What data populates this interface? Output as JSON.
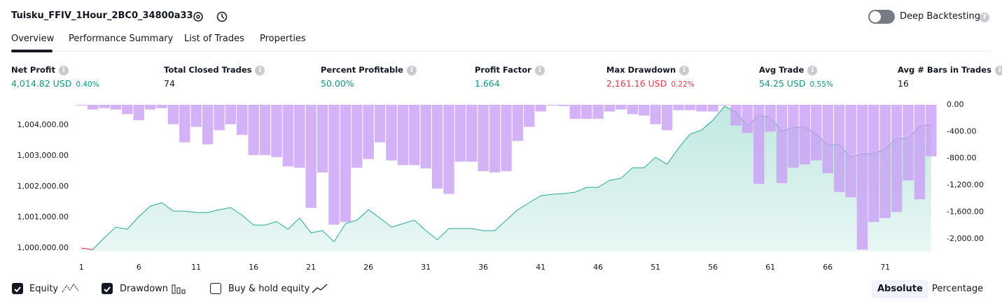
{
  "header": {
    "title": "Tuisku_FFIV_1Hour_2BC0_34800a33",
    "toggle": {
      "label": "Deep Backtesting",
      "enabled": false
    }
  },
  "tabs": [
    {
      "label": "Overview",
      "selected": true
    },
    {
      "label": "Performance Summary",
      "selected": false
    },
    {
      "label": "List of Trades",
      "selected": false
    },
    {
      "label": "Properties",
      "selected": false
    }
  ],
  "stats": [
    {
      "label": "Net Profit",
      "value": "4,014.82 USD",
      "percent": "0.40%",
      "color": "#089981"
    },
    {
      "label": "Total Closed Trades",
      "value": "74",
      "color": "#131722"
    },
    {
      "label": "Percent Profitable",
      "value": "50.00%",
      "color": "#089981"
    },
    {
      "label": "Profit Factor",
      "value": "1.664",
      "color": "#089981"
    },
    {
      "label": "Max Drawdown",
      "value": "2,161.16 USD",
      "percent": "0.22%",
      "color": "#f23645"
    },
    {
      "label": "Avg Trade",
      "value": "54.25 USD",
      "percent": "0.55%",
      "color": "#089981"
    },
    {
      "label": "Avg # Bars in Trades",
      "value": "16",
      "color": "#131722"
    }
  ],
  "chart_data": {
    "type": "combo",
    "x": [
      1,
      2,
      3,
      4,
      5,
      6,
      7,
      8,
      9,
      10,
      11,
      12,
      13,
      14,
      15,
      16,
      17,
      18,
      19,
      20,
      21,
      22,
      23,
      24,
      25,
      26,
      27,
      28,
      29,
      30,
      31,
      32,
      33,
      34,
      35,
      36,
      37,
      38,
      39,
      40,
      41,
      42,
      43,
      44,
      45,
      46,
      47,
      48,
      49,
      50,
      51,
      52,
      53,
      54,
      55,
      56,
      57,
      58,
      59,
      60,
      61,
      62,
      63,
      64,
      65,
      66,
      67,
      68,
      69,
      70,
      71,
      72,
      73,
      74,
      75
    ],
    "xlim": [
      0.5,
      75.5
    ],
    "xticks": [
      1,
      6,
      11,
      16,
      21,
      26,
      31,
      36,
      41,
      46,
      51,
      56,
      61,
      66,
      71
    ],
    "ylim": [
      999890,
      1004660
    ],
    "yticks": [
      {
        "value": 1000000,
        "label": "1,000,000.00"
      },
      {
        "value": 1001000,
        "label": "1,001,000.00"
      },
      {
        "value": 1002000,
        "label": "1,002,000.00"
      },
      {
        "value": 1003000,
        "label": "1,003,000.00"
      },
      {
        "value": 1004000,
        "label": "1,004,000.00"
      }
    ],
    "y2lim": [
      -2190,
      0
    ],
    "y2ticks": [
      {
        "value": 0,
        "label": "0.00"
      },
      {
        "value": -400,
        "label": "-400.00"
      },
      {
        "value": -800,
        "label": "-800.00"
      },
      {
        "value": -1200,
        "label": "-1,200.00"
      },
      {
        "value": -1600,
        "label": "-1,600.00"
      },
      {
        "value": -2000,
        "label": "-2,000.00"
      }
    ],
    "series": [
      {
        "name": "Equity",
        "type": "area",
        "color": "#22ab94",
        "below_color": "#f23645",
        "visible": true,
        "values": [
          1000000,
          999955,
          1000341,
          1000682,
          1000614,
          1001023,
          1001364,
          1001477,
          1001205,
          1001205,
          1001159,
          1001159,
          1001250,
          1001318,
          1001068,
          1000750,
          1000750,
          1000864,
          1000614,
          1000977,
          1000500,
          1000568,
          1000205,
          1000795,
          1000909,
          1001250,
          1000977,
          1000682,
          1000795,
          1000909,
          1000568,
          1000273,
          1000636,
          1000636,
          1000636,
          1000568,
          1000568,
          1000909,
          1001250,
          1001477,
          1001705,
          1001750,
          1001773,
          1001818,
          1001977,
          1001977,
          1002205,
          1002273,
          1002614,
          1002614,
          1002955,
          1002727,
          1003250,
          1003705,
          1003841,
          1004159,
          1004614,
          1004432,
          1003977,
          1004318,
          1004250,
          1003795,
          1003932,
          1003932,
          1003705,
          1003364,
          1003364,
          1002955,
          1003068,
          1003068,
          1003227,
          1003568,
          1003568,
          1003955,
          1004015
        ]
      },
      {
        "name": "Drawdown",
        "type": "bar",
        "axis": "y2",
        "color": "#c99ff5",
        "visible": true,
        "values": [
          0,
          -70,
          -50,
          -70,
          -140,
          -230,
          -70,
          -50,
          -290,
          -560,
          -330,
          -590,
          -380,
          -290,
          -450,
          -750,
          -750,
          -780,
          -920,
          -940,
          -1540,
          -1010,
          -1790,
          -1750,
          -940,
          -810,
          -560,
          -830,
          -900,
          -900,
          -950,
          -1250,
          -1330,
          -850,
          -850,
          -990,
          -1010,
          -990,
          -540,
          -330,
          -100,
          -10,
          -20,
          -210,
          -210,
          -210,
          -100,
          -70,
          -140,
          -160,
          -290,
          -380,
          -80,
          -80,
          -100,
          -100,
          0,
          -310,
          -420,
          -1180,
          -400,
          -1170,
          -940,
          -890,
          -830,
          -1020,
          -1300,
          -1380,
          -2161,
          -1750,
          -1690,
          -1600,
          -1130,
          -1410,
          -770
        ]
      }
    ]
  },
  "footer": {
    "buy_hold": {
      "label": "Buy & hold equity",
      "checked": false
    },
    "modes": [
      {
        "label": "Absolute",
        "selected": true
      },
      {
        "label": "Percentage",
        "selected": false
      }
    ]
  }
}
